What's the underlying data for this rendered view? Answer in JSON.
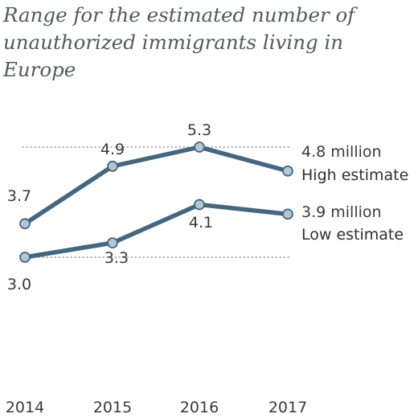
{
  "chart_data": {
    "type": "line",
    "title": "Range for the estimated number of unauthorized immigrants living in Europe",
    "x": [
      "2014",
      "2015",
      "2016",
      "2017"
    ],
    "series": [
      {
        "name": "High estimate",
        "values": [
          3.7,
          4.9,
          5.3,
          4.8
        ],
        "data_labels": [
          "3.7",
          "4.9",
          "5.3",
          "4.8 million"
        ]
      },
      {
        "name": "Low estimate",
        "values": [
          3.0,
          3.3,
          4.1,
          3.9
        ],
        "data_labels": [
          "3.0",
          "3.3",
          "4.1",
          "3.9 million"
        ]
      }
    ],
    "reference_lines": [
      3.0,
      5.3
    ],
    "line_color": "#44677f",
    "marker_fill": "#b3c7d6",
    "reference_line_color": "#a5a5a5",
    "xlabel": "",
    "ylabel": "",
    "grid": false,
    "legend": "direct labels at line ends"
  }
}
